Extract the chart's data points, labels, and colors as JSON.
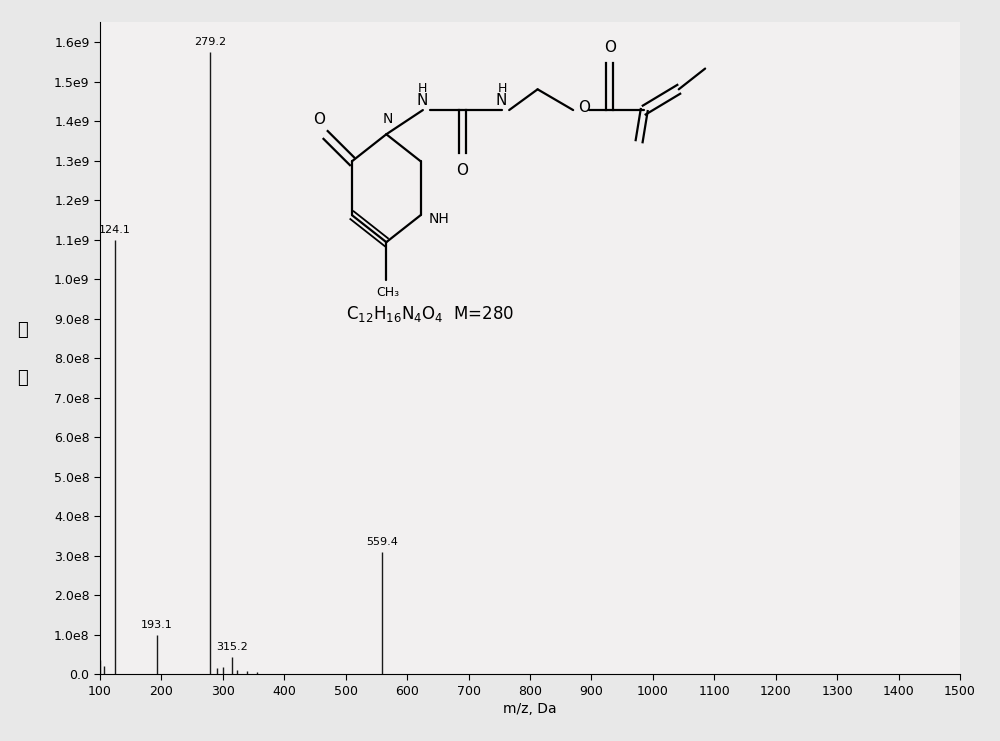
{
  "peaks": [
    {
      "mz": 100.5,
      "intensity": 35000000.0,
      "label": ""
    },
    {
      "mz": 107.0,
      "intensity": 20000000.0,
      "label": ""
    },
    {
      "mz": 124.1,
      "intensity": 1100000000.0,
      "label": "124.1"
    },
    {
      "mz": 193.1,
      "intensity": 100000000.0,
      "label": "193.1"
    },
    {
      "mz": 279.2,
      "intensity": 1575000000.0,
      "label": "279.2"
    },
    {
      "mz": 291.0,
      "intensity": 15000000.0,
      "label": ""
    },
    {
      "mz": 301.0,
      "intensity": 18000000.0,
      "label": ""
    },
    {
      "mz": 315.2,
      "intensity": 45000000.0,
      "label": "315.2"
    },
    {
      "mz": 323.0,
      "intensity": 12000000.0,
      "label": ""
    },
    {
      "mz": 340.0,
      "intensity": 8000000.0,
      "label": ""
    },
    {
      "mz": 355.0,
      "intensity": 5000000.0,
      "label": ""
    },
    {
      "mz": 559.4,
      "intensity": 310000000.0,
      "label": "559.4"
    }
  ],
  "xlim": [
    100,
    1500
  ],
  "ylim": [
    0,
    1650000000.0
  ],
  "xticks": [
    100,
    200,
    300,
    400,
    500,
    600,
    700,
    800,
    900,
    1000,
    1100,
    1200,
    1300,
    1400,
    1500
  ],
  "yticks": [
    0.0,
    100000000.0,
    200000000.0,
    300000000.0,
    400000000.0,
    500000000.0,
    600000000.0,
    700000000.0,
    800000000.0,
    900000000.0,
    1000000000.0,
    1100000000.0,
    1200000000.0,
    1300000000.0,
    1400000000.0,
    1500000000.0,
    1600000000.0
  ],
  "ytick_labels": [
    "0.0",
    "1.0e8",
    "2.0e8",
    "3.0e8",
    "4.0e8",
    "5.0e8",
    "6.0e8",
    "7.0e8",
    "8.0e8",
    "9.0e8",
    "1.0e9",
    "1.1e9",
    "1.2e9",
    "1.3e9",
    "1.4e9",
    "1.5e9",
    "1.6e9"
  ],
  "xlabel": "m/z, Da",
  "ylabel_top": "强",
  "ylabel_bottom": "度",
  "line_color": "#1a1a1a",
  "bg_color": "#e8e8e8",
  "plot_bg": "#f2f0f0",
  "axis_fontsize": 9,
  "label_fontsize": 8
}
